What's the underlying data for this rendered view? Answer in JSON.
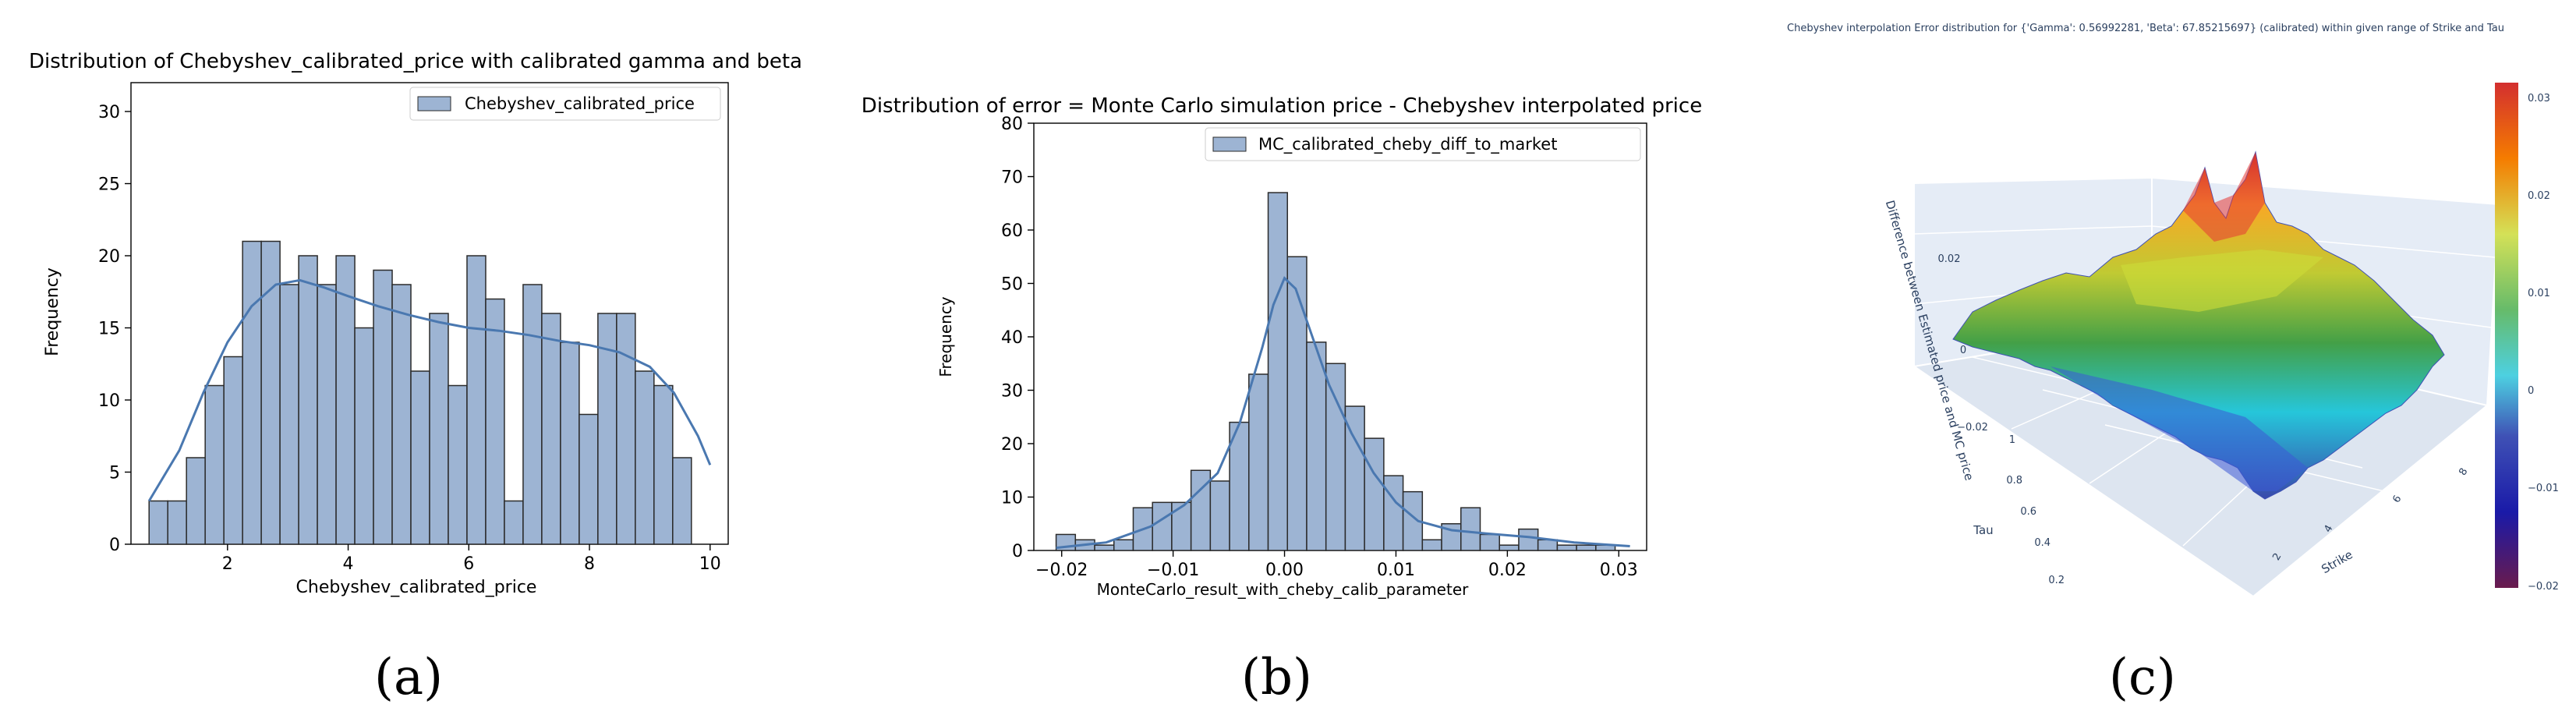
{
  "panel_labels": [
    "(a)",
    "(b)",
    "(c)"
  ],
  "colors": {
    "bar_fill": "#9db4d3",
    "bar_edge": "#2b2b2b",
    "kde": "#4a78b0",
    "surface_bg": "#e5ecf6"
  },
  "chart_data": [
    {
      "type": "bar",
      "title": "Distribution of Chebyshev_calibrated_price with calibrated gamma and beta",
      "xlabel": "Chebyshev_calibrated_price",
      "ylabel": "Frequency",
      "legend": {
        "label": "Chebyshev_calibrated_price",
        "position": "top-right"
      },
      "xlim": [
        0.4,
        10.3
      ],
      "ylim": [
        0,
        32
      ],
      "xticks": [
        2,
        4,
        6,
        8,
        10
      ],
      "yticks": [
        0,
        5,
        10,
        15,
        20,
        25,
        30
      ],
      "bin_start": 0.7,
      "bin_width": 0.31,
      "values": [
        3,
        3,
        6,
        11,
        13,
        21,
        21,
        18,
        20,
        18,
        20,
        15,
        19,
        18,
        12,
        16,
        11,
        20,
        17,
        3,
        18,
        16,
        14,
        9,
        16,
        16,
        12,
        11,
        6
      ],
      "kde": {
        "x": [
          0.7,
          1.2,
          1.6,
          2.0,
          2.4,
          2.8,
          3.2,
          3.6,
          4.0,
          4.5,
          5.0,
          5.5,
          6.0,
          6.5,
          7.0,
          7.5,
          8.0,
          8.5,
          9.0,
          9.4,
          9.8,
          10.0
        ],
        "y": [
          3,
          6.5,
          10.5,
          14,
          16.5,
          18,
          18.3,
          17.8,
          17.2,
          16.5,
          15.9,
          15.4,
          15,
          14.8,
          14.5,
          14.1,
          13.8,
          13.3,
          12.3,
          10.5,
          7.5,
          5.5
        ]
      }
    },
    {
      "type": "bar",
      "title": "Distribution of error = Monte Carlo simulation price - Chebyshev interpolated price",
      "xlabel": "MonteCarlo_result_with_cheby_calib_parameter",
      "ylabel": "Frequency",
      "legend": {
        "label": "MC_calibrated_cheby_diff_to_market",
        "position": "top-right"
      },
      "xlim": [
        -0.0225,
        0.0325
      ],
      "ylim": [
        0,
        80
      ],
      "xticks": [
        -0.02,
        -0.01,
        0.0,
        0.01,
        0.02,
        0.03
      ],
      "xtick_labels": [
        "−0.02",
        "−0.01",
        "0.00",
        "0.01",
        "0.02",
        "0.03"
      ],
      "yticks": [
        0,
        10,
        20,
        30,
        40,
        50,
        60,
        70,
        80
      ],
      "bin_start": -0.0205,
      "bin_width": 0.00173,
      "values": [
        3,
        2,
        1,
        2,
        8,
        9,
        9,
        15,
        13,
        24,
        33,
        67,
        55,
        39,
        35,
        27,
        21,
        14,
        11,
        2,
        5,
        8,
        3,
        1,
        4,
        2,
        1,
        1,
        1
      ],
      "kde": {
        "x": [
          -0.0205,
          -0.016,
          -0.012,
          -0.009,
          -0.006,
          -0.004,
          -0.002,
          -0.001,
          0.0,
          0.001,
          0.002,
          0.004,
          0.006,
          0.008,
          0.01,
          0.012,
          0.015,
          0.018,
          0.022,
          0.026,
          0.031
        ],
        "y": [
          0.5,
          1.5,
          4.5,
          8.5,
          14.5,
          24,
          38,
          46,
          51,
          49,
          43,
          31,
          22,
          14.5,
          9,
          5.5,
          3.8,
          3.2,
          2.5,
          1.5,
          0.8
        ]
      }
    },
    {
      "type": "heatmap",
      "title": "Chebyshev interpolation Error distribution for {'Gamma': 0.56992281, 'Beta': 67.85215697} (calibrated) within given range of Strike and Tau",
      "zlabel": "Difference between Estimated price and MC price",
      "ylabel": "Tau",
      "xlabel": "Strike",
      "z_ticks": [
        "0.02",
        "0",
        "−0.02"
      ],
      "tau_ticks": [
        "1",
        "0.8",
        "0.6",
        "0.4",
        "0.2"
      ],
      "strike_ticks": [
        "2",
        "4",
        "6",
        "8"
      ],
      "colorbar": {
        "ticks": [
          "0.03",
          "0.02",
          "0.01",
          "0",
          "−0.01",
          "−0.02"
        ],
        "colors": [
          "#d32f2f",
          "#f57c00",
          "#d4e157",
          "#66bb6a",
          "#4dd0e1",
          "#3f51b5",
          "#1a1aa8",
          "#6a1b4d"
        ]
      }
    }
  ]
}
